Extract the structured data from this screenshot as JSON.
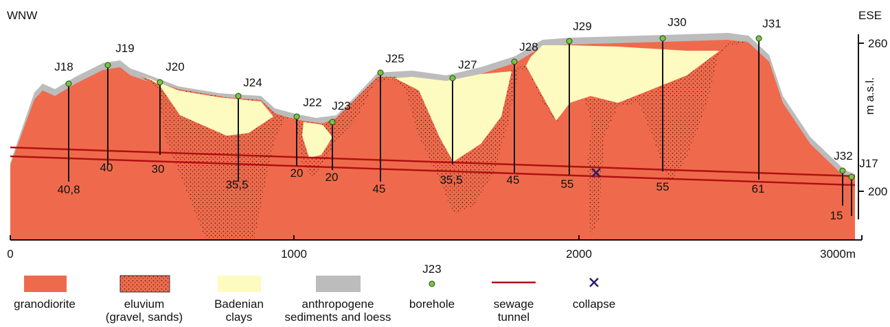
{
  "header": {
    "left": "WNW",
    "right": "ESE"
  },
  "boreholes": [
    {
      "name": "J18",
      "depth": "40,8"
    },
    {
      "name": "J19",
      "depth": "40"
    },
    {
      "name": "J20",
      "depth": "30"
    },
    {
      "name": "J24",
      "depth": "35,5"
    },
    {
      "name": "J22",
      "depth": "20"
    },
    {
      "name": "J23",
      "depth": "20"
    },
    {
      "name": "J25",
      "depth": "45"
    },
    {
      "name": "J27",
      "depth": "35,5"
    },
    {
      "name": "J28",
      "depth": "45"
    },
    {
      "name": "J29",
      "depth": "55"
    },
    {
      "name": "J30",
      "depth": "55"
    },
    {
      "name": "J31",
      "depth": "61"
    },
    {
      "name": "J32",
      "depth": "15"
    },
    {
      "name": "J17"
    }
  ],
  "x_axis": {
    "ticks": [
      "0",
      "1000",
      "2000",
      "3000m"
    ]
  },
  "y_axis": {
    "label": "m a.s.l.",
    "ticks": [
      "260",
      "200"
    ]
  },
  "legend": [
    {
      "label": [
        "granodiorite"
      ]
    },
    {
      "label": [
        "eluvium",
        "(gravel, sands)"
      ]
    },
    {
      "label": [
        "Badenian",
        "clays"
      ]
    },
    {
      "label": [
        "anthropogene",
        "sediments and loess"
      ]
    },
    {
      "sample": "J23",
      "label": [
        "borehole"
      ]
    },
    {
      "label": [
        "sewage",
        "tunnel"
      ]
    },
    {
      "label": [
        "collapse"
      ]
    }
  ]
}
